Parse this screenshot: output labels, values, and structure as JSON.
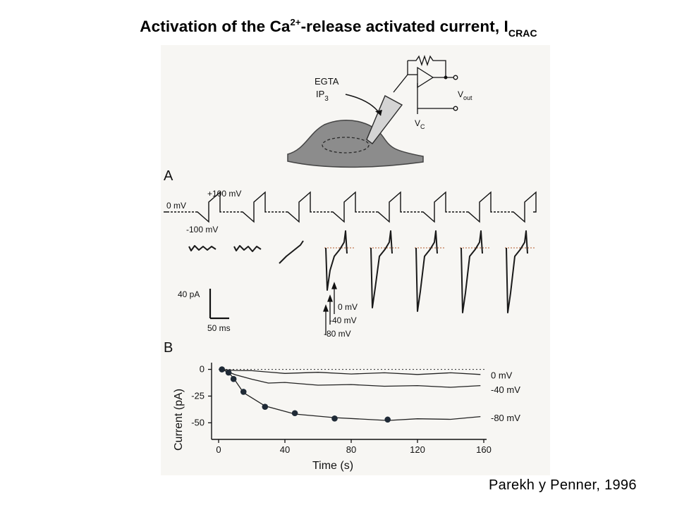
{
  "slide": {
    "title_main": "Activation of the Ca",
    "title_sup": "2+",
    "title_rest": "-release activated current, I",
    "title_sub": "CRAC",
    "citation": "Parekh y Penner, 1996"
  },
  "figure": {
    "schematic": {
      "pipette_label_1": "EGTA",
      "pipette_label_2": "IP",
      "pipette_label_2_sub": "3",
      "vout_label": "V",
      "vout_sub": "out",
      "vc_label": "V",
      "vc_sub": "C"
    },
    "panel_a": {
      "label": "A",
      "voltage_labels": [
        "+100 mV",
        "0 mV",
        "-100 mV"
      ],
      "scale_current": "40 pA",
      "scale_time": "50 ms",
      "arrow_labels": [
        "0 mV",
        "-40 mV",
        "-80 mV"
      ],
      "ramp_count": 8
    },
    "panel_b": {
      "label": "B",
      "ylabel": "Current  (pA)",
      "xlabel": "Time (s)",
      "series_labels": [
        "0 mV",
        "-40 mV",
        "-80 mV"
      ]
    }
  },
  "chart_data": {
    "type": "line",
    "xlabel": "Time (s)",
    "ylabel": "Current  (pA)",
    "xlim": [
      0,
      160
    ],
    "ylim": [
      -55,
      3
    ],
    "xticks": [
      0,
      40,
      80,
      120,
      160
    ],
    "yticks": [
      0,
      -25,
      -50
    ],
    "series": [
      {
        "name": "0 mV",
        "x": [
          2,
          10,
          20,
          40,
          60,
          80,
          100,
          120,
          140,
          158
        ],
        "y": [
          0,
          -1,
          -2,
          -3,
          -3.5,
          -3.5,
          -4,
          -4,
          -4,
          -4
        ]
      },
      {
        "name": "-40 mV",
        "x": [
          2,
          10,
          20,
          30,
          40,
          60,
          80,
          100,
          120,
          140,
          158
        ],
        "y": [
          0,
          -5,
          -10,
          -12,
          -13,
          -14,
          -15,
          -15,
          -16,
          -16,
          -16
        ]
      },
      {
        "name": "-80 mV",
        "x": [
          2,
          6,
          9,
          15,
          28,
          46,
          70,
          102,
          120,
          140,
          158
        ],
        "y": [
          0,
          -3,
          -9,
          -21,
          -35,
          -41,
          -46,
          -47,
          -47,
          -46,
          -45
        ],
        "markers": [
          [
            2,
            0
          ],
          [
            6,
            -3
          ],
          [
            9,
            -9
          ],
          [
            15,
            -21
          ],
          [
            28,
            -35
          ],
          [
            46,
            -41
          ],
          [
            70,
            -46
          ],
          [
            102,
            -47
          ]
        ]
      }
    ]
  }
}
